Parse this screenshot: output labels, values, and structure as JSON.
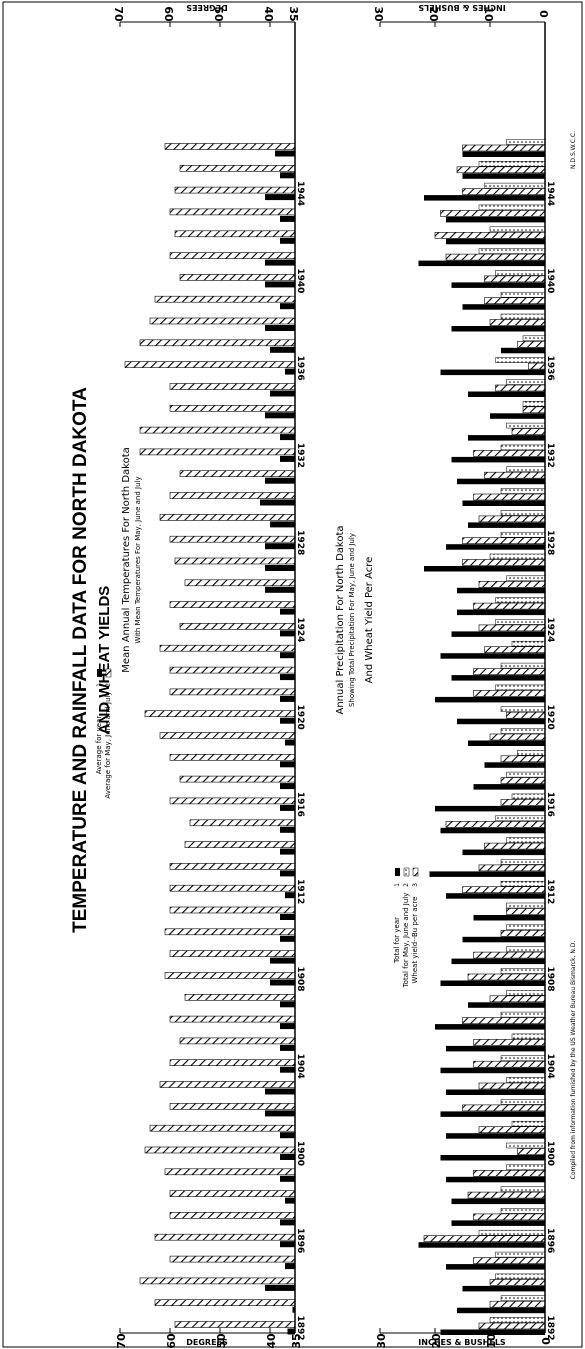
{
  "title": "TEMPERATURE AND RAINFALL DATA FOR NORTH DAKOTA AND WHEAT YIELDS",
  "title_line1": "TEMPERATURE  AND  RAINFALL  DATA  FOR  NORTH  DAKOTA",
  "title_line2": "AND  WHEAT  YIELDS",
  "colors": {
    "ink": "#000000",
    "paper": "#ffffff"
  },
  "top_panel": {
    "title": "Mean Annual Temperatures For North Dakota",
    "subtitle": "With Mean Temperatures For May, June and July",
    "axis_label": "DEGREES",
    "ticks": [
      "70",
      "60",
      "50",
      "40",
      "35"
    ],
    "legend": [
      {
        "label": "Average for year",
        "key": "1"
      },
      {
        "label": "Average for May, June and July",
        "key": "2"
      }
    ]
  },
  "bottom_panel": {
    "title": "Annual Precipitation For North Dakota",
    "subtitle": "Showing Total Precipitation For May, June and July",
    "subtitle2": "And Wheat Yield Per Acre",
    "axis_label": "INCHES & BUSHELS",
    "ticks": [
      "30",
      "20",
      "10",
      "0"
    ],
    "legend": [
      {
        "label": "Total for year",
        "key": "1"
      },
      {
        "label": "Total for May, June and July",
        "key": "2"
      },
      {
        "label": "Wheat yield--Bu per acre",
        "key": "3"
      }
    ]
  },
  "year_labels": [
    "1892",
    "1896",
    "1900",
    "1904",
    "1908",
    "1912",
    "1916",
    "1920",
    "1924",
    "1928",
    "1932",
    "1936",
    "1940",
    "1944"
  ],
  "credit": "Compiled from information furnished by the US Weather Bureau Bismarck, N.D.",
  "stamp": "N.D.S.W.C.C.",
  "chart_data": [
    {
      "type": "bar",
      "title": "Mean Annual Temperatures For North Dakota",
      "subtitle": "With Mean Temperatures For May, June and July",
      "ylabel": "DEGREES",
      "ylim": [
        35,
        70
      ],
      "categories": [
        "1892",
        "1893",
        "1894",
        "1895",
        "1896",
        "1897",
        "1898",
        "1899",
        "1900",
        "1901",
        "1902",
        "1903",
        "1904",
        "1905",
        "1906",
        "1907",
        "1908",
        "1909",
        "1910",
        "1911",
        "1912",
        "1913",
        "1914",
        "1915",
        "1916",
        "1917",
        "1918",
        "1919",
        "1920",
        "1921",
        "1922",
        "1923",
        "1924",
        "1925",
        "1926",
        "1927",
        "1928",
        "1929",
        "1930",
        "1931",
        "1932",
        "1933",
        "1934",
        "1935",
        "1936",
        "1937",
        "1938",
        "1939",
        "1940",
        "1941",
        "1942",
        "1943",
        "1944",
        "1945",
        "1946"
      ],
      "series": [
        {
          "name": "Average for year",
          "values": [
            36.5,
            35.5,
            41,
            37,
            38,
            38,
            37,
            38,
            38,
            38,
            41,
            41,
            38,
            38,
            38,
            38,
            40,
            40,
            38,
            38,
            37,
            38,
            38,
            38,
            38,
            38,
            38,
            37,
            38,
            38,
            38,
            38,
            38,
            38,
            41,
            41,
            41,
            40,
            42,
            41,
            38,
            38,
            41,
            40,
            37,
            40,
            41,
            38,
            41,
            41,
            38,
            38,
            41,
            38,
            39
          ]
        },
        {
          "name": "Average for May, June and July",
          "values": [
            59,
            63,
            66,
            60,
            63,
            60,
            60,
            61,
            65,
            64,
            60,
            62,
            60,
            58,
            60,
            57,
            61,
            60,
            61,
            60,
            60,
            60,
            57,
            56,
            60,
            58,
            60,
            62,
            65,
            60,
            60,
            62,
            58,
            60,
            57,
            59,
            60,
            62,
            60,
            58,
            66,
            66,
            60,
            60,
            69,
            66,
            64,
            63,
            58,
            60,
            59,
            60,
            59,
            58,
            61
          ]
        }
      ]
    },
    {
      "type": "bar",
      "title": "Annual Precipitation For North Dakota",
      "subtitle": "Showing Total Precipitation For May, June and July And Wheat Yield Per Acre",
      "ylabel": "INCHES & BUSHELS",
      "ylim": [
        0,
        30
      ],
      "categories": [
        "1892",
        "1893",
        "1894",
        "1895",
        "1896",
        "1897",
        "1898",
        "1899",
        "1900",
        "1901",
        "1902",
        "1903",
        "1904",
        "1905",
        "1906",
        "1907",
        "1908",
        "1909",
        "1910",
        "1911",
        "1912",
        "1913",
        "1914",
        "1915",
        "1916",
        "1917",
        "1918",
        "1919",
        "1920",
        "1921",
        "1922",
        "1923",
        "1924",
        "1925",
        "1926",
        "1927",
        "1928",
        "1929",
        "1930",
        "1931",
        "1932",
        "1933",
        "1934",
        "1935",
        "1936",
        "1937",
        "1938",
        "1939",
        "1940",
        "1941",
        "1942",
        "1943",
        "1944",
        "1945",
        "1946"
      ],
      "series": [
        {
          "name": "Total for year",
          "values": [
            19,
            16,
            15,
            18,
            23,
            17,
            17,
            18,
            19,
            18,
            19,
            18,
            19,
            18,
            20,
            14,
            19,
            17,
            15,
            13,
            18,
            21,
            15,
            19,
            20,
            13,
            11,
            14,
            16,
            20,
            17,
            19,
            17,
            16,
            16,
            22,
            18,
            14,
            15,
            16,
            17,
            14,
            10,
            14,
            19,
            8,
            17,
            15,
            17,
            23,
            18,
            18,
            22,
            15,
            15
          ]
        },
        {
          "name": "Total for May, June and July",
          "values": [
            10,
            8,
            9,
            9,
            12,
            8,
            8,
            7,
            7,
            6,
            8,
            7,
            8,
            6,
            8,
            7,
            8,
            7,
            7,
            7,
            8,
            8,
            7,
            9,
            6,
            7,
            5,
            8,
            8,
            9,
            8,
            6,
            9,
            9,
            7,
            10,
            8,
            8,
            8,
            7,
            8,
            7,
            4,
            7,
            9,
            4,
            8,
            8,
            9,
            12,
            10,
            12,
            11,
            12,
            7
          ]
        },
        {
          "name": "Wheat yield--Bu per acre",
          "values": [
            12,
            10,
            10,
            13,
            22,
            13,
            14,
            13,
            5,
            12,
            15,
            12,
            13,
            13,
            15,
            10,
            14,
            13,
            8,
            7,
            15,
            12,
            11,
            18,
            8,
            8,
            8,
            10,
            7,
            13,
            13,
            11,
            12,
            13,
            12,
            15,
            15,
            12,
            13,
            11,
            13,
            6,
            4,
            9,
            3,
            5,
            10,
            11,
            11,
            18,
            20,
            19,
            15,
            16,
            15
          ]
        }
      ]
    }
  ]
}
